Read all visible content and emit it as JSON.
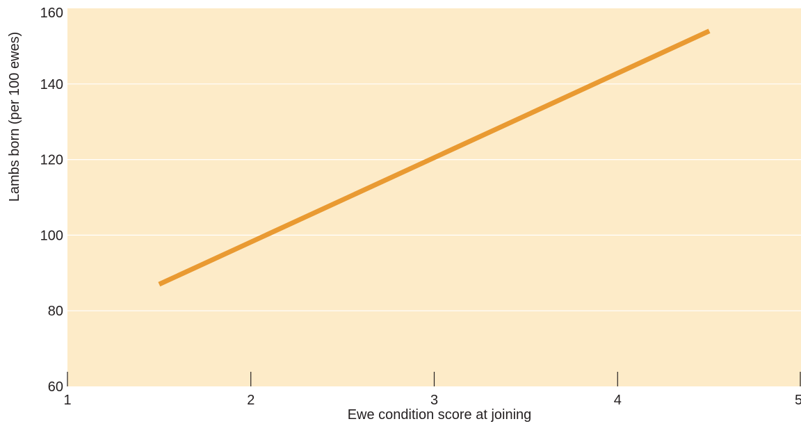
{
  "chart_data": {
    "type": "line",
    "title": "",
    "xlabel": "Ewe condition score at joining",
    "ylabel": "Lambs born (per 100 ewes)",
    "xlim": [
      1,
      5
    ],
    "ylim": [
      60,
      160
    ],
    "x_ticks": [
      "1",
      "2",
      "3",
      "4",
      "5"
    ],
    "y_ticks": [
      "60",
      "80",
      "100",
      "120",
      "140",
      "160"
    ],
    "grid": true,
    "legend": "none",
    "colors": {
      "plot_background": "#fdebc8",
      "line": "#e99a32",
      "gridline": "#ffffff",
      "axis": "#231f20"
    },
    "series": [
      {
        "x": [
          1.5,
          4.5
        ],
        "y": [
          87,
          154
        ]
      }
    ]
  }
}
